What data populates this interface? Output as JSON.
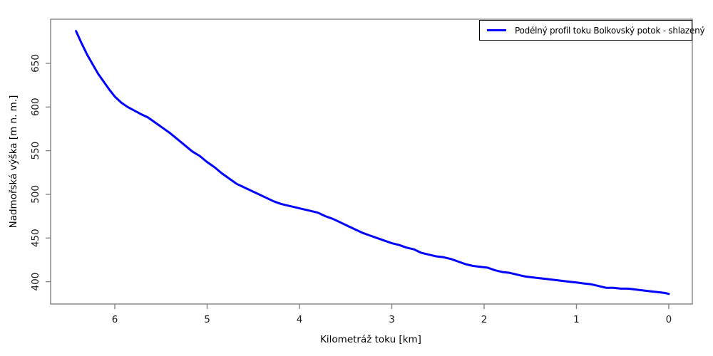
{
  "colors": {
    "line": "#0000ff",
    "axis": "#828282",
    "tick_text": "#1a1a1a",
    "background": "#ffffff"
  },
  "legend": {
    "label": "Podélný profil toku Bolkovský potok - shlazený"
  },
  "chart_data": {
    "type": "line",
    "title": "",
    "xlabel": "Kilometráž toku [km]",
    "ylabel": "Nadmořská výška [m n. m.]",
    "x_ticks": [
      6,
      5,
      4,
      3,
      2,
      1,
      0
    ],
    "y_ticks": [
      400,
      450,
      500,
      550,
      600,
      650
    ],
    "axis": {
      "xlim": [
        6.695,
        -0.255
      ],
      "ylim": [
        374.4,
        700.5
      ],
      "x_reversed": true,
      "grid": false
    },
    "legend_position": "topright",
    "series": [
      {
        "name": "Podélný profil toku Bolkovský potok - shlazený",
        "color": "#0000ff",
        "x": [
          6.42,
          6.36,
          6.3,
          6.24,
          6.18,
          6.12,
          6.06,
          6.0,
          5.93,
          5.86,
          5.79,
          5.72,
          5.64,
          5.56,
          5.48,
          5.4,
          5.32,
          5.24,
          5.16,
          5.08,
          5.0,
          4.92,
          4.84,
          4.76,
          4.68,
          4.6,
          4.52,
          4.44,
          4.36,
          4.28,
          4.2,
          4.12,
          4.04,
          3.96,
          3.88,
          3.8,
          3.72,
          3.64,
          3.56,
          3.48,
          3.4,
          3.32,
          3.24,
          3.16,
          3.08,
          3.0,
          2.92,
          2.84,
          2.76,
          2.68,
          2.6,
          2.52,
          2.44,
          2.36,
          2.28,
          2.2,
          2.12,
          2.04,
          1.96,
          1.88,
          1.8,
          1.72,
          1.64,
          1.56,
          1.48,
          1.4,
          1.32,
          1.24,
          1.16,
          1.08,
          1.0,
          0.92,
          0.84,
          0.76,
          0.68,
          0.6,
          0.52,
          0.44,
          0.36,
          0.28,
          0.2,
          0.12,
          0.04,
          0.0
        ],
        "y": [
          687,
          673,
          660,
          649,
          638,
          629,
          620,
          612,
          605,
          600,
          596,
          592,
          588,
          582,
          576,
          570,
          563,
          556,
          549,
          544,
          537,
          531,
          524,
          518,
          512,
          508,
          504,
          500,
          496,
          492,
          489,
          487,
          485,
          483,
          481,
          479,
          475,
          472,
          468,
          464,
          460,
          456,
          453,
          450,
          447,
          444,
          442,
          439,
          437,
          433,
          431,
          429,
          428,
          426,
          423,
          420,
          418,
          417,
          416,
          413,
          411,
          410,
          408,
          406,
          405,
          404,
          403,
          402,
          401,
          400,
          399,
          398,
          397,
          395,
          393,
          393,
          392,
          392,
          391,
          390,
          389,
          388,
          387,
          386
        ]
      }
    ]
  }
}
